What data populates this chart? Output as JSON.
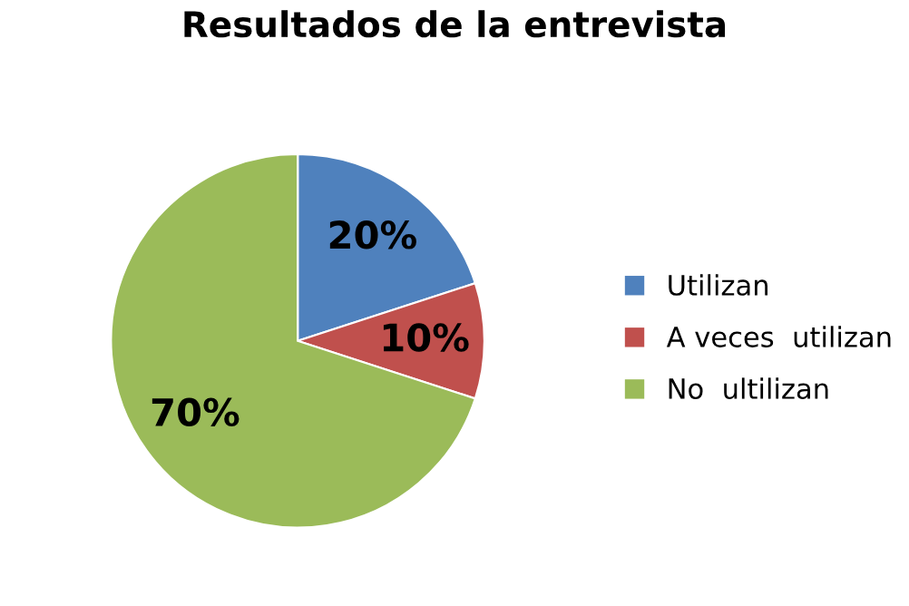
{
  "chart_data": {
    "type": "pie",
    "title": "Resultados de la entrevista",
    "categories": [
      "Utilizan",
      "A veces  utilizan",
      "No  ultilizan"
    ],
    "values": [
      20,
      10,
      70
    ],
    "colors": [
      "#4f81bd",
      "#c0504d",
      "#9bbb59"
    ],
    "value_labels": [
      "20%",
      "10%",
      "70%"
    ],
    "legend": "right"
  }
}
